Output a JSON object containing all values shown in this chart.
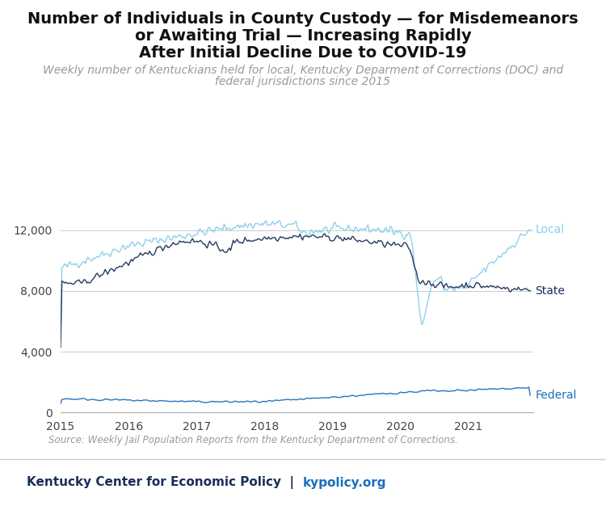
{
  "title_line1": "Number of Individuals in County Custody — for Misdemeanors",
  "title_line2": "or Awaiting Trial — Increasing Rapidly",
  "title_line3": "After Initial Decline Due to COVID-19",
  "subtitle_line1": "Weekly number of Kentuckians held for local, Kentucky Deparment of Corrections (DOC) and",
  "subtitle_line2": "federal jurisdictions since 2015",
  "source_text": "Source: Weekly Jail Population Reports from the Kentucky Department of Corrections.",
  "footer_left": "Kentucky Center for Economic Policy",
  "footer_right": "kypolicy.org",
  "local_color": "#87CEEB",
  "state_color": "#1a2f5a",
  "federal_color": "#1a6fbd",
  "ylim": [
    0,
    14000
  ],
  "yticks": [
    0,
    4000,
    8000,
    12000
  ],
  "xlim_start": 2015.0,
  "xlim_end": 2021.95,
  "xtick_years": [
    2015,
    2016,
    2017,
    2018,
    2019,
    2020,
    2021
  ],
  "label_local": "Local",
  "label_state": "State",
  "label_federal": "Federal",
  "background_color": "#ffffff",
  "title_fontsize": 14,
  "subtitle_fontsize": 10
}
